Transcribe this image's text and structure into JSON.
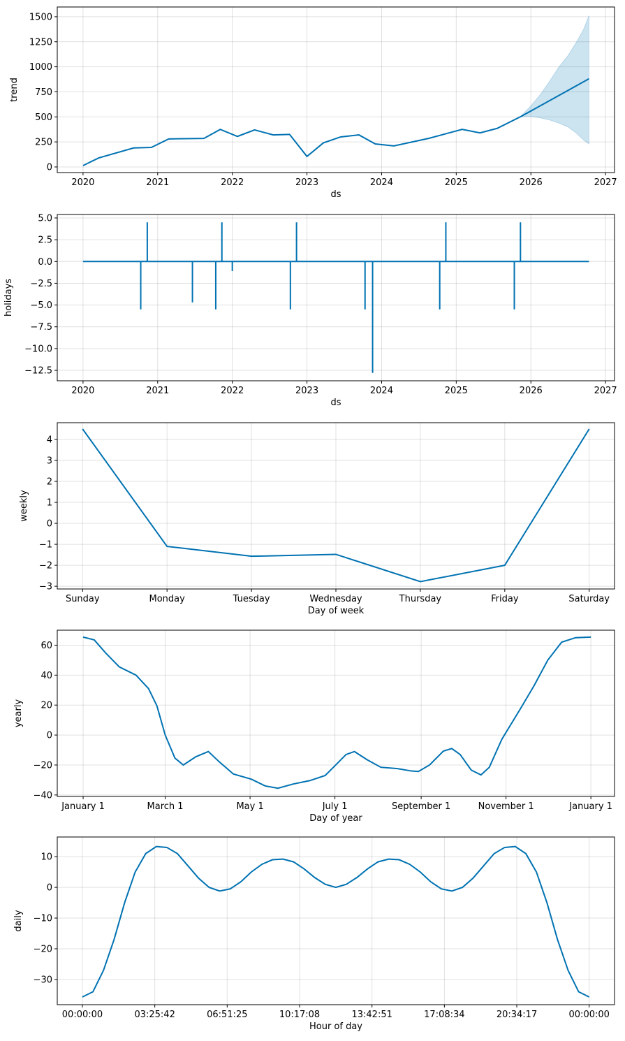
{
  "colors": {
    "line": "#0072B2",
    "band": "#0072B2",
    "grid": "#dddddd",
    "axis": "#000000"
  },
  "chart_data": [
    {
      "type": "line",
      "ylabel": "trend",
      "xlabel": "ds",
      "x_kind": "date",
      "xlim": [
        "2019-08-28",
        "2027-02-14"
      ],
      "ylim": [
        -56,
        1597
      ],
      "grid": true,
      "xticks": [
        {
          "v": "2020-01-01",
          "label": "2020"
        },
        {
          "v": "2021-01-01",
          "label": "2021"
        },
        {
          "v": "2022-01-01",
          "label": "2022"
        },
        {
          "v": "2023-01-01",
          "label": "2023"
        },
        {
          "v": "2024-01-01",
          "label": "2024"
        },
        {
          "v": "2025-01-01",
          "label": "2025"
        },
        {
          "v": "2026-01-01",
          "label": "2026"
        },
        {
          "v": "2027-01-01",
          "label": "2027"
        }
      ],
      "yticks": [
        {
          "v": 0,
          "label": "0"
        },
        {
          "v": 250,
          "label": "250"
        },
        {
          "v": 500,
          "label": "500"
        },
        {
          "v": 750,
          "label": "750"
        },
        {
          "v": 1000,
          "label": "1000"
        },
        {
          "v": 1250,
          "label": "1250"
        },
        {
          "v": 1500,
          "label": "1500"
        }
      ],
      "x": [
        "2020-01-01",
        "2020-03-18",
        "2020-09-05",
        "2020-12-01",
        "2021-02-24",
        "2021-08-15",
        "2021-11-03",
        "2022-01-26",
        "2022-04-20",
        "2022-07-20",
        "2022-10-08",
        "2023-01-01",
        "2023-03-22",
        "2023-06-15",
        "2023-09-12",
        "2023-12-01",
        "2024-03-01",
        "2024-08-18",
        "2025-01-30",
        "2025-04-27",
        "2025-07-20",
        "2025-11-10",
        "2026-10-12"
      ],
      "y": [
        14,
        90,
        190,
        195,
        280,
        285,
        375,
        305,
        370,
        320,
        325,
        105,
        240,
        300,
        320,
        230,
        210,
        285,
        375,
        340,
        385,
        500,
        880
      ],
      "band": {
        "x": [
          "2025-11-10",
          "2026-01-01",
          "2026-02-15",
          "2026-04-01",
          "2026-05-15",
          "2026-07-01",
          "2026-08-10",
          "2026-09-15",
          "2026-10-12"
        ],
        "upper": [
          500,
          610,
          720,
          850,
          990,
          1110,
          1240,
          1370,
          1510
        ],
        "lower": [
          500,
          505,
          490,
          470,
          440,
          400,
          340,
          270,
          230
        ]
      }
    },
    {
      "type": "line",
      "ylabel": "holidays",
      "xlabel": "ds",
      "x_kind": "date",
      "xlim": [
        "2019-08-28",
        "2027-02-14"
      ],
      "ylim": [
        -13.7,
        5.4
      ],
      "grid": true,
      "xticks": [
        {
          "v": "2020-01-01",
          "label": "2020"
        },
        {
          "v": "2021-01-01",
          "label": "2021"
        },
        {
          "v": "2022-01-01",
          "label": "2022"
        },
        {
          "v": "2023-01-01",
          "label": "2023"
        },
        {
          "v": "2024-01-01",
          "label": "2024"
        },
        {
          "v": "2025-01-01",
          "label": "2025"
        },
        {
          "v": "2026-01-01",
          "label": "2026"
        },
        {
          "v": "2027-01-01",
          "label": "2027"
        }
      ],
      "yticks": [
        {
          "v": 5,
          "label": "5.0"
        },
        {
          "v": 2.5,
          "label": "2.5"
        },
        {
          "v": 0,
          "label": "0.0"
        },
        {
          "v": -2.5,
          "label": "−2.5"
        },
        {
          "v": -5,
          "label": "−5.0"
        },
        {
          "v": -7.5,
          "label": "−7.5"
        },
        {
          "v": -10,
          "label": "−10.0"
        },
        {
          "v": -12.5,
          "label": "−12.5"
        }
      ],
      "range": [
        "2020-01-01",
        "2026-10-12"
      ],
      "spikes": {
        "x": [
          "2020-10-10",
          "2020-11-11",
          "2021-06-20",
          "2021-10-12",
          "2021-11-11",
          "2022-01-01",
          "2022-10-12",
          "2022-11-11",
          "2023-10-12",
          "2023-11-18",
          "2024-10-12",
          "2024-11-11",
          "2025-10-12",
          "2025-11-11"
        ],
        "y": [
          -5.5,
          4.5,
          -4.7,
          -5.5,
          4.5,
          -1.1,
          -5.5,
          4.5,
          -5.5,
          -12.8,
          -5.5,
          4.5,
          -5.5,
          4.5
        ]
      }
    },
    {
      "type": "line",
      "ylabel": "weekly",
      "xlabel": "Day of week",
      "xlim": [
        -0.3,
        6.3
      ],
      "ylim": [
        -3.13,
        4.8
      ],
      "grid": true,
      "xticks": [
        {
          "v": 0,
          "label": "Sunday"
        },
        {
          "v": 1,
          "label": "Monday"
        },
        {
          "v": 2,
          "label": "Tuesday"
        },
        {
          "v": 3,
          "label": "Wednesday"
        },
        {
          "v": 4,
          "label": "Thursday"
        },
        {
          "v": 5,
          "label": "Friday"
        },
        {
          "v": 6,
          "label": "Saturday"
        }
      ],
      "yticks": [
        {
          "v": -3,
          "label": "−3"
        },
        {
          "v": -2,
          "label": "−2"
        },
        {
          "v": -1,
          "label": "−1"
        },
        {
          "v": 0,
          "label": "0"
        },
        {
          "v": 1,
          "label": "1"
        },
        {
          "v": 2,
          "label": "2"
        },
        {
          "v": 3,
          "label": "3"
        },
        {
          "v": 4,
          "label": "4"
        }
      ],
      "x": [
        0,
        1,
        2,
        3,
        4,
        5,
        6
      ],
      "y": [
        4.5,
        -1.1,
        -1.57,
        -1.48,
        -2.78,
        -2.0,
        4.5
      ]
    },
    {
      "type": "line",
      "ylabel": "yearly",
      "xlabel": "Day of year",
      "xlim": [
        -18.6,
        382
      ],
      "ylim": [
        -41,
        70
      ],
      "grid": true,
      "xticks": [
        {
          "v": 0,
          "label": "January 1"
        },
        {
          "v": 59,
          "label": "March 1"
        },
        {
          "v": 120,
          "label": "May 1"
        },
        {
          "v": 181,
          "label": "July 1"
        },
        {
          "v": 243,
          "label": "September 1"
        },
        {
          "v": 304,
          "label": "November 1"
        },
        {
          "v": 365,
          "label": "January 1"
        }
      ],
      "yticks": [
        {
          "v": -40,
          "label": "−40"
        },
        {
          "v": -20,
          "label": "−20"
        },
        {
          "v": 0,
          "label": "0"
        },
        {
          "v": 20,
          "label": "20"
        },
        {
          "v": 40,
          "label": "40"
        },
        {
          "v": 60,
          "label": "60"
        }
      ],
      "x": [
        0,
        8,
        16,
        26,
        38,
        47,
        53,
        59,
        66,
        72,
        81,
        90,
        98,
        108,
        121,
        131,
        140,
        151,
        163,
        174,
        181,
        189,
        195,
        204,
        214,
        226,
        236,
        241,
        249,
        259,
        265,
        271,
        279,
        286,
        292,
        301,
        314,
        324,
        334,
        344,
        354,
        365
      ],
      "y": [
        65.4,
        63.5,
        55,
        45.5,
        40,
        31,
        19.6,
        0,
        -15.4,
        -20,
        -14.5,
        -11,
        -18,
        -26,
        -29.5,
        -34,
        -35.5,
        -32.7,
        -30.4,
        -27,
        -20.5,
        -13,
        -11,
        -16.4,
        -21.5,
        -22.4,
        -24,
        -24.3,
        -20,
        -10.7,
        -9,
        -13,
        -23.4,
        -26.6,
        -21.5,
        -2.8,
        17,
        32.7,
        50,
        62,
        65,
        65.4
      ]
    },
    {
      "type": "line",
      "ylabel": "daily",
      "xlabel": "Hour of day",
      "xlim": [
        -1.19,
        25.2
      ],
      "ylim": [
        -38.2,
        16.4
      ],
      "grid": true,
      "xticks": [
        {
          "v": 0,
          "label": "00:00:00"
        },
        {
          "v": 3.4286,
          "label": "03:25:42"
        },
        {
          "v": 6.8571,
          "label": "06:51:25"
        },
        {
          "v": 10.2857,
          "label": "10:17:08"
        },
        {
          "v": 13.7143,
          "label": "13:42:51"
        },
        {
          "v": 17.1429,
          "label": "17:08:34"
        },
        {
          "v": 20.5714,
          "label": "20:34:17"
        },
        {
          "v": 24,
          "label": "00:00:00"
        }
      ],
      "yticks": [
        {
          "v": -30,
          "label": "−30"
        },
        {
          "v": -20,
          "label": "−20"
        },
        {
          "v": -10,
          "label": "−10"
        },
        {
          "v": 0,
          "label": "0"
        },
        {
          "v": 10,
          "label": "10"
        }
      ],
      "x": [
        0,
        0.5,
        1,
        1.5,
        2,
        2.5,
        3,
        3.5,
        4,
        4.5,
        5,
        5.5,
        6,
        6.5,
        7,
        7.5,
        8,
        8.5,
        9,
        9.5,
        10,
        10.5,
        11,
        11.5,
        12,
        12.5,
        13,
        13.5,
        14,
        14.5,
        15,
        15.5,
        16,
        16.5,
        17,
        17.5,
        18,
        18.5,
        19,
        19.5,
        20,
        20.5,
        21,
        21.5,
        22,
        22.5,
        23,
        23.5,
        24
      ],
      "y": [
        -35.7,
        -34,
        -27,
        -17,
        -5,
        5,
        11,
        13.3,
        13,
        11,
        7,
        3,
        0,
        -1.2,
        -0.5,
        1.8,
        5,
        7.5,
        9,
        9.2,
        8.3,
        6,
        3.2,
        1,
        0,
        1,
        3.2,
        6,
        8.3,
        9.2,
        9,
        7.5,
        5,
        1.8,
        -0.5,
        -1.2,
        0,
        3,
        7,
        11,
        13,
        13.3,
        11,
        5,
        -5,
        -17,
        -27,
        -34,
        -35.7
      ]
    }
  ]
}
